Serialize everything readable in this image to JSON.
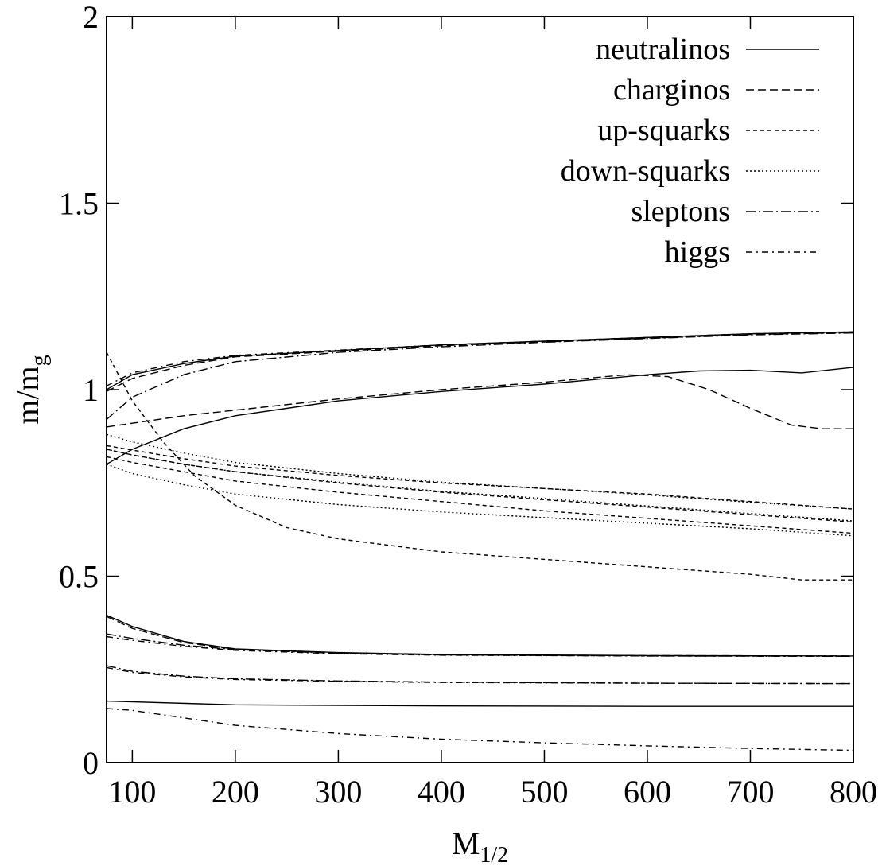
{
  "chart_data": {
    "type": "line",
    "title": "",
    "xlabel": "M",
    "xlabel_sub": "1/2",
    "ylabel": "m/m",
    "ylabel_sub": "g",
    "xlim": [
      75,
      800
    ],
    "ylim": [
      0,
      2
    ],
    "xticks": [
      100,
      200,
      300,
      400,
      500,
      600,
      700,
      800
    ],
    "yticks": [
      0,
      0.5,
      1,
      1.5,
      2
    ],
    "ytick_labels": [
      "0",
      "0.5",
      "1",
      "1.5",
      "2"
    ],
    "grid": false,
    "legend_position": "top-right",
    "series": [
      {
        "name": "neutralinos",
        "style": "solid",
        "lines": [
          [
            [
              75,
              0.165
            ],
            [
              200,
              0.155
            ],
            [
              400,
              0.152
            ],
            [
              600,
              0.151
            ],
            [
              800,
              0.151
            ]
          ],
          [
            [
              75,
              0.395
            ],
            [
              100,
              0.365
            ],
            [
              150,
              0.325
            ],
            [
              200,
              0.305
            ],
            [
              300,
              0.295
            ],
            [
              400,
              0.29
            ],
            [
              600,
              0.287
            ],
            [
              800,
              0.286
            ]
          ],
          [
            [
              75,
              0.8
            ],
            [
              100,
              0.84
            ],
            [
              150,
              0.895
            ],
            [
              200,
              0.93
            ],
            [
              300,
              0.97
            ],
            [
              400,
              0.995
            ],
            [
              500,
              1.015
            ],
            [
              600,
              1.04
            ],
            [
              650,
              1.05
            ],
            [
              700,
              1.052
            ],
            [
              750,
              1.045
            ],
            [
              800,
              1.06
            ]
          ],
          [
            [
              75,
              1.0
            ],
            [
              100,
              1.04
            ],
            [
              150,
              1.07
            ],
            [
              200,
              1.09
            ],
            [
              300,
              1.105
            ],
            [
              400,
              1.12
            ],
            [
              500,
              1.13
            ],
            [
              600,
              1.14
            ],
            [
              700,
              1.15
            ],
            [
              800,
              1.155
            ]
          ]
        ]
      },
      {
        "name": "charginos",
        "style": "dashed",
        "lines": [
          [
            [
              75,
              0.392
            ],
            [
              100,
              0.36
            ],
            [
              150,
              0.322
            ],
            [
              200,
              0.304
            ],
            [
              300,
              0.294
            ],
            [
              400,
              0.289
            ],
            [
              600,
              0.287
            ],
            [
              800,
              0.286
            ]
          ],
          [
            [
              75,
              0.9
            ],
            [
              100,
              0.91
            ],
            [
              150,
              0.93
            ],
            [
              200,
              0.945
            ],
            [
              300,
              0.975
            ],
            [
              400,
              1.0
            ],
            [
              500,
              1.02
            ],
            [
              580,
              1.04
            ],
            [
              620,
              1.035
            ],
            [
              660,
              1.0
            ],
            [
              700,
              0.95
            ],
            [
              740,
              0.905
            ],
            [
              770,
              0.895
            ],
            [
              800,
              0.895
            ]
          ],
          [
            [
              75,
              0.995
            ],
            [
              100,
              1.03
            ],
            [
              150,
              1.065
            ],
            [
              200,
              1.088
            ],
            [
              300,
              1.103
            ],
            [
              400,
              1.118
            ],
            [
              500,
              1.128
            ],
            [
              600,
              1.138
            ],
            [
              700,
              1.148
            ],
            [
              800,
              1.153
            ]
          ]
        ]
      },
      {
        "name": "up-squarks",
        "style": "short-dashed",
        "lines": [
          [
            [
              75,
              1.1
            ],
            [
              100,
              0.97
            ],
            [
              130,
              0.86
            ],
            [
              160,
              0.77
            ],
            [
              200,
              0.69
            ],
            [
              250,
              0.63
            ],
            [
              300,
              0.6
            ],
            [
              400,
              0.565
            ],
            [
              500,
              0.545
            ],
            [
              600,
              0.525
            ],
            [
              700,
              0.505
            ],
            [
              750,
              0.49
            ],
            [
              800,
              0.49
            ]
          ],
          [
            [
              75,
              0.85
            ],
            [
              100,
              0.838
            ],
            [
              150,
              0.815
            ],
            [
              200,
              0.795
            ],
            [
              300,
              0.77
            ],
            [
              400,
              0.75
            ],
            [
              500,
              0.735
            ],
            [
              600,
              0.72
            ],
            [
              700,
              0.7
            ],
            [
              800,
              0.68
            ]
          ],
          [
            [
              75,
              0.84
            ],
            [
              100,
              0.825
            ],
            [
              150,
              0.8
            ],
            [
              200,
              0.78
            ],
            [
              300,
              0.75
            ],
            [
              400,
              0.725
            ],
            [
              500,
              0.705
            ],
            [
              600,
              0.685
            ],
            [
              700,
              0.665
            ],
            [
              800,
              0.645
            ]
          ],
          [
            [
              75,
              0.82
            ],
            [
              100,
              0.805
            ],
            [
              150,
              0.78
            ],
            [
              200,
              0.755
            ],
            [
              300,
              0.725
            ],
            [
              400,
              0.7
            ],
            [
              500,
              0.675
            ],
            [
              600,
              0.655
            ],
            [
              700,
              0.635
            ],
            [
              800,
              0.615
            ]
          ]
        ]
      },
      {
        "name": "down-squarks",
        "style": "dotted",
        "lines": [
          [
            [
              75,
              0.88
            ],
            [
              100,
              0.86
            ],
            [
              150,
              0.83
            ],
            [
              200,
              0.805
            ],
            [
              300,
              0.775
            ],
            [
              400,
              0.752
            ],
            [
              500,
              0.735
            ],
            [
              600,
              0.718
            ],
            [
              700,
              0.698
            ],
            [
              800,
              0.68
            ]
          ],
          [
            [
              75,
              0.84
            ],
            [
              100,
              0.825
            ],
            [
              150,
              0.8
            ],
            [
              200,
              0.78
            ],
            [
              300,
              0.752
            ],
            [
              400,
              0.727
            ],
            [
              500,
              0.708
            ],
            [
              600,
              0.688
            ],
            [
              700,
              0.668
            ],
            [
              800,
              0.648
            ]
          ],
          [
            [
              75,
              0.8
            ],
            [
              100,
              0.775
            ],
            [
              150,
              0.745
            ],
            [
              200,
              0.72
            ],
            [
              300,
              0.692
            ],
            [
              400,
              0.672
            ],
            [
              500,
              0.657
            ],
            [
              600,
              0.642
            ],
            [
              700,
              0.627
            ],
            [
              800,
              0.608
            ]
          ]
        ]
      },
      {
        "name": "sleptons",
        "style": "dash-dot",
        "lines": [
          [
            [
              75,
              0.345
            ],
            [
              100,
              0.333
            ],
            [
              150,
              0.315
            ],
            [
              200,
              0.303
            ],
            [
              300,
              0.293
            ],
            [
              400,
              0.289
            ],
            [
              600,
              0.286
            ],
            [
              800,
              0.285
            ]
          ],
          [
            [
              75,
              0.26
            ],
            [
              100,
              0.245
            ],
            [
              150,
              0.232
            ],
            [
              200,
              0.225
            ],
            [
              300,
              0.219
            ],
            [
              400,
              0.216
            ],
            [
              600,
              0.213
            ],
            [
              800,
              0.212
            ]
          ],
          [
            [
              75,
              0.92
            ],
            [
              100,
              0.98
            ],
            [
              150,
              1.04
            ],
            [
              200,
              1.075
            ],
            [
              300,
              1.1
            ],
            [
              400,
              1.115
            ],
            [
              500,
              1.127
            ],
            [
              600,
              1.137
            ],
            [
              700,
              1.147
            ],
            [
              800,
              1.152
            ]
          ]
        ]
      },
      {
        "name": "higgs",
        "style": "dash-dot-fine",
        "lines": [
          [
            [
              75,
              0.145
            ],
            [
              100,
              0.14
            ],
            [
              150,
              0.12
            ],
            [
              200,
              0.1
            ],
            [
              300,
              0.078
            ],
            [
              400,
              0.063
            ],
            [
              500,
              0.053
            ],
            [
              600,
              0.045
            ],
            [
              700,
              0.038
            ],
            [
              800,
              0.033
            ]
          ],
          [
            [
              75,
              0.338
            ],
            [
              100,
              0.328
            ],
            [
              150,
              0.312
            ],
            [
              200,
              0.301
            ],
            [
              300,
              0.292
            ],
            [
              400,
              0.288
            ],
            [
              600,
              0.286
            ],
            [
              800,
              0.285
            ]
          ],
          [
            [
              75,
              0.255
            ],
            [
              100,
              0.242
            ],
            [
              150,
              0.23
            ],
            [
              200,
              0.223
            ],
            [
              300,
              0.218
            ],
            [
              400,
              0.215
            ],
            [
              600,
              0.213
            ],
            [
              800,
              0.212
            ]
          ],
          [
            [
              75,
              1.01
            ],
            [
              100,
              1.045
            ],
            [
              150,
              1.075
            ],
            [
              200,
              1.092
            ],
            [
              300,
              1.106
            ],
            [
              400,
              1.12
            ],
            [
              500,
              1.13
            ],
            [
              600,
              1.14
            ],
            [
              700,
              1.15
            ],
            [
              800,
              1.155
            ]
          ]
        ]
      }
    ]
  }
}
